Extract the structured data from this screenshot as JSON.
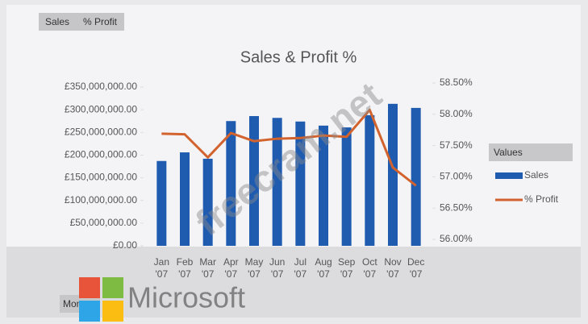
{
  "chart_data": {
    "type": "bar_line",
    "title": "Sales & Profit %",
    "categories": [
      "Jan '07",
      "Feb '07",
      "Mar '07",
      "Apr '07",
      "May '07",
      "Jun '07",
      "Jul '07",
      "Aug '07",
      "Sep '07",
      "Oct '07",
      "Nov '07",
      "Dec '07"
    ],
    "series": [
      {
        "name": "Sales",
        "type": "bar",
        "color": "#1f5cb0",
        "values": [
          187000000,
          206000000,
          192000000,
          275000000,
          286000000,
          282000000,
          274000000,
          265000000,
          261000000,
          288000000,
          313000000,
          304000000
        ]
      },
      {
        "name": "% Profit",
        "type": "line",
        "axis": "y2",
        "color": "#d2632e",
        "values": [
          57.69,
          57.68,
          57.31,
          57.7,
          57.57,
          57.61,
          57.62,
          57.66,
          57.64,
          58.07,
          57.15,
          56.86
        ]
      }
    ],
    "ylim": [
      0,
      350000000
    ],
    "yticks": [
      {
        "value": 0,
        "label": "£0.00"
      },
      {
        "value": 50000000,
        "label": "£50,000,000.00"
      },
      {
        "value": 100000000,
        "label": "£100,000,000.00"
      },
      {
        "value": 150000000,
        "label": "£150,000,000.00"
      },
      {
        "value": 200000000,
        "label": "£200,000,000.00"
      },
      {
        "value": 250000000,
        "label": "£250,000,000.00"
      },
      {
        "value": 300000000,
        "label": "£300,000,000.00"
      },
      {
        "value": 350000000,
        "label": "£350,000,000.00"
      }
    ],
    "y2lim": [
      56,
      58.5
    ],
    "y2ticks": [
      {
        "value": 56,
        "label": "56.00%"
      },
      {
        "value": 56.5,
        "label": "56.50%"
      },
      {
        "value": 57,
        "label": "57.00%"
      },
      {
        "value": 57.5,
        "label": "57.50%"
      },
      {
        "value": 58,
        "label": "58.00%"
      },
      {
        "value": 58.5,
        "label": "58.50%"
      }
    ],
    "legend_title": "Values",
    "legend": "right"
  },
  "field_buttons": [
    "Sales",
    "% Profit"
  ],
  "axis_button": "Mon",
  "watermarks": [
    "freecram.net",
    "Microsoft"
  ]
}
